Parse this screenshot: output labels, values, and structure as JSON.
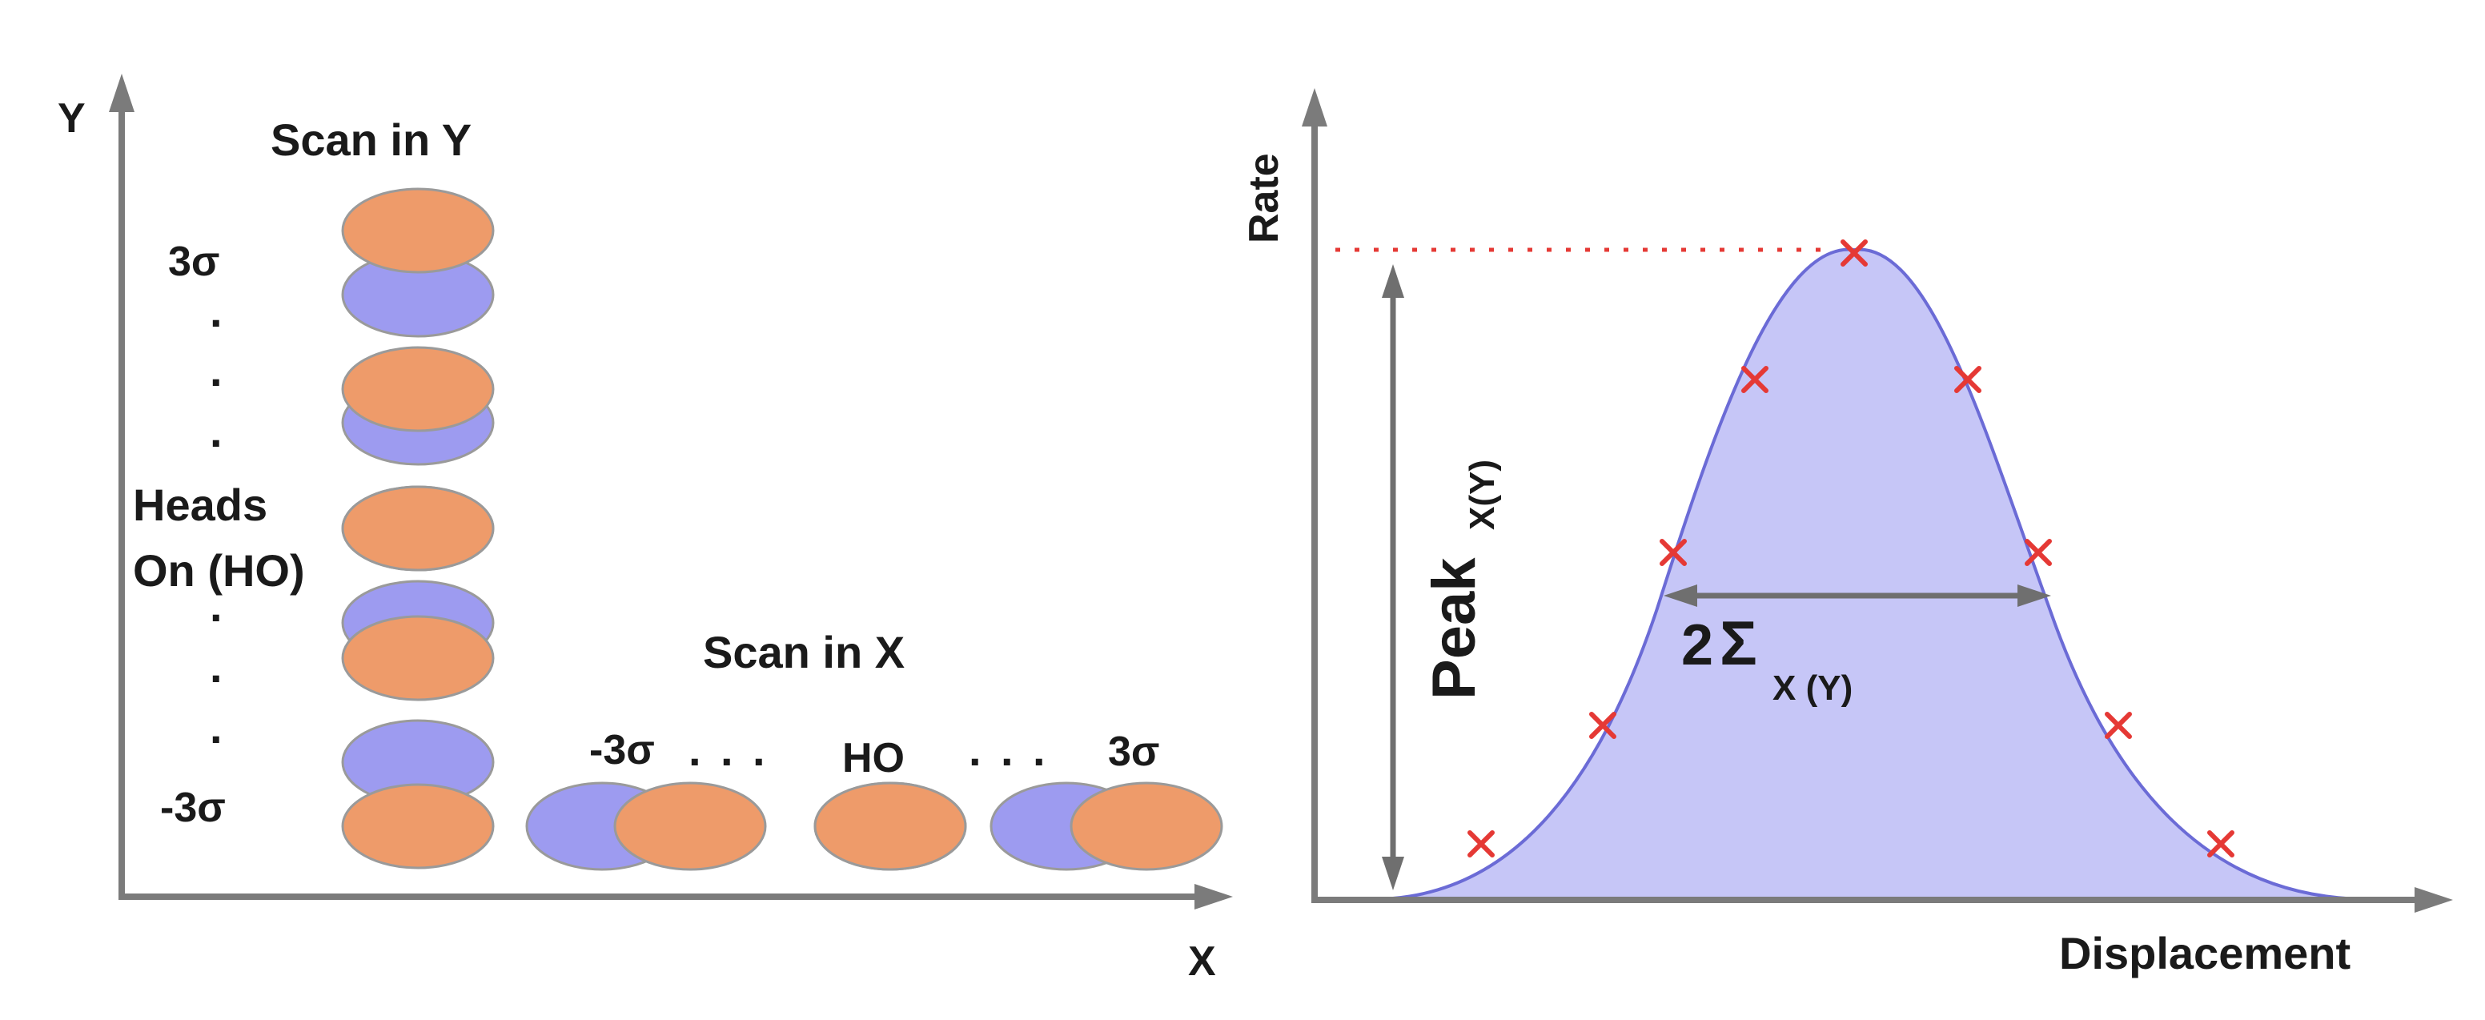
{
  "left_panel": {
    "y_axis_label": "Y",
    "x_axis_label": "X",
    "scan_y_title": "Scan in Y",
    "scan_x_title": "Scan in X",
    "label_plus_3sigma": "3σ",
    "label_minus_3sigma": "-3σ",
    "heads_on_line1": "Heads",
    "heads_on_line2": "On (HO)",
    "x_label_minus": "-3σ",
    "x_label_ho": "HO",
    "x_label_plus": "3σ",
    "dots": ".",
    "colors": {
      "orange": "#EE9B6A",
      "blue": "#9D9BF0",
      "stroke": "#9a9a9a",
      "axis": "#7b7b7b"
    }
  },
  "right_panel": {
    "y_axis_label": "Rate",
    "x_axis_label": "Displacement",
    "peak_label": "Peak",
    "peak_sub": "X(Y)",
    "width_label_prefix": "2",
    "width_label_symbol": "Σ",
    "width_label_sub": "X (Y)",
    "colors": {
      "fill": "#C6C6F7",
      "curve": "#6b6bd6",
      "marker": "#e53935",
      "arrow": "#6f6f6f",
      "peak_line": "#e53935"
    }
  }
}
